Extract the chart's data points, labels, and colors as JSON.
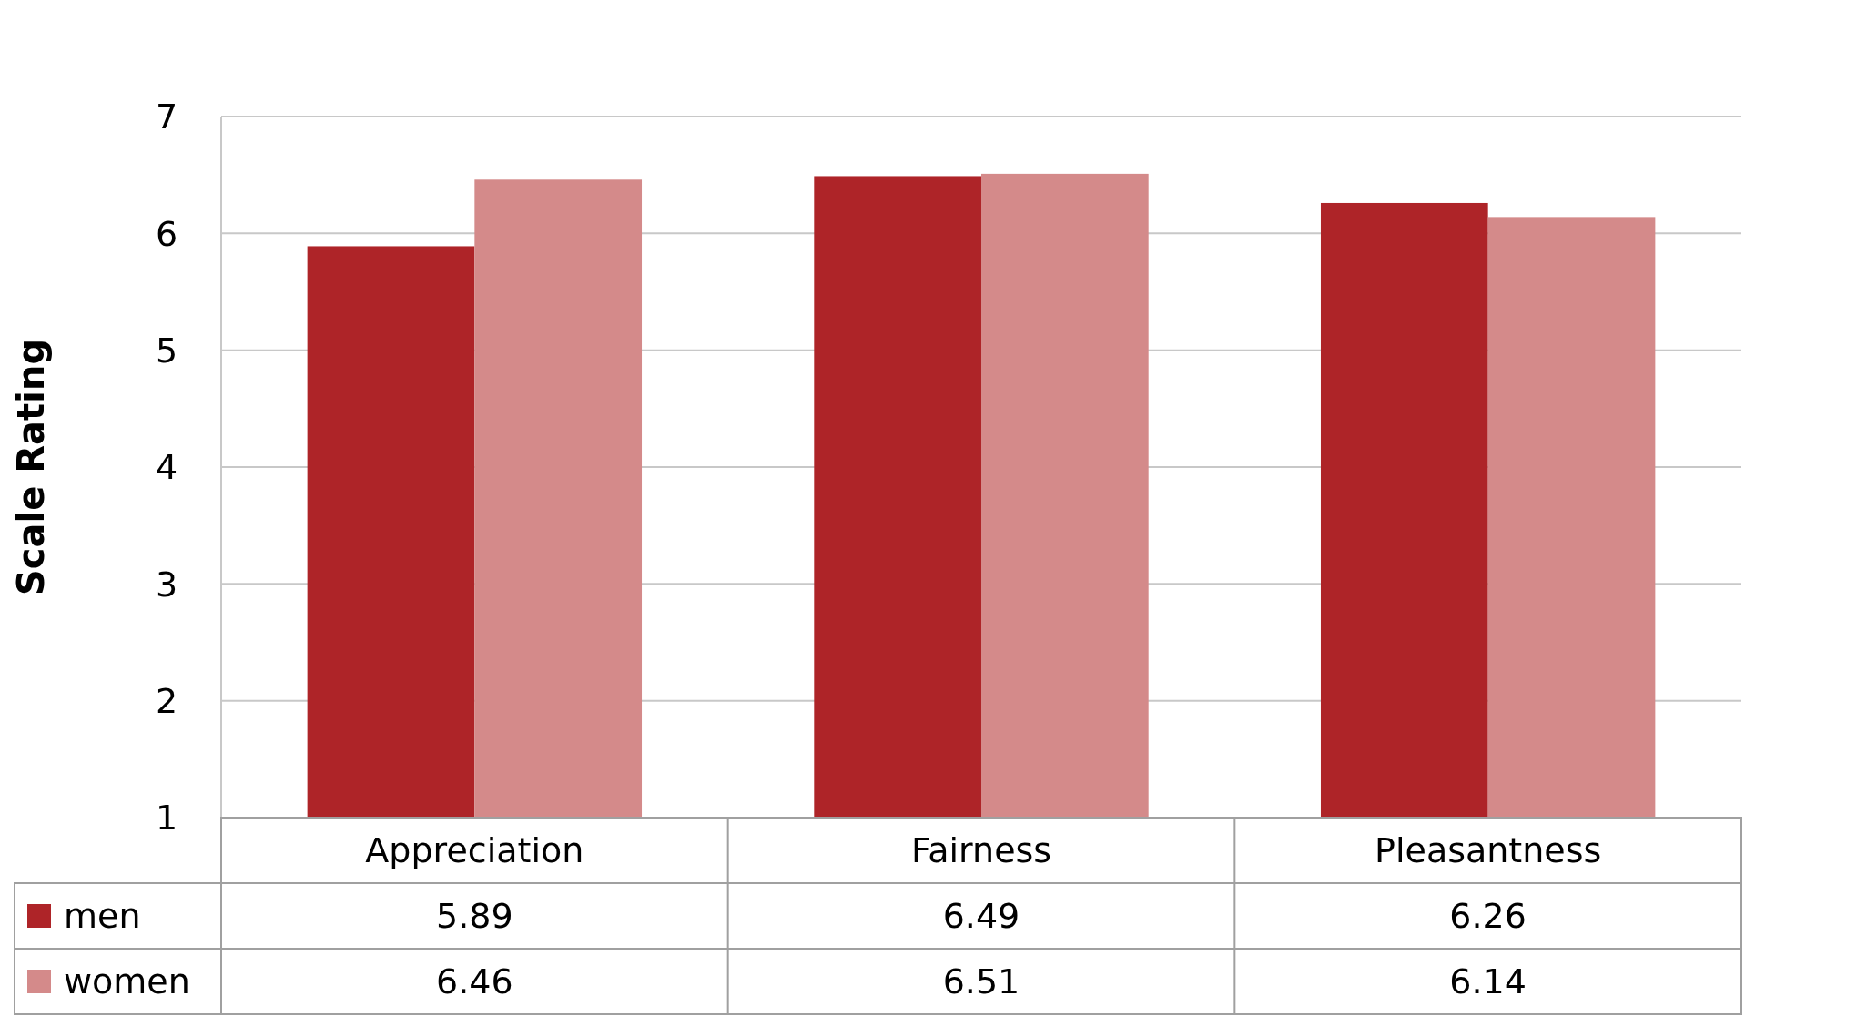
{
  "chart_data": {
    "type": "bar",
    "ylabel": "Scale Rating",
    "categories": [
      "Appreciation",
      "Fairness",
      "Pleasantness"
    ],
    "series": [
      {
        "name": "men",
        "color": "#ae2428",
        "values": [
          5.89,
          6.49,
          6.26
        ]
      },
      {
        "name": "women",
        "color": "#d48a8a",
        "values": [
          6.46,
          6.51,
          6.14
        ]
      }
    ],
    "ylim": [
      1,
      7
    ],
    "yticks": [
      1,
      2,
      3,
      4,
      5,
      6,
      7
    ],
    "grid": "y",
    "data_labels": true,
    "legend": "bottom left"
  }
}
